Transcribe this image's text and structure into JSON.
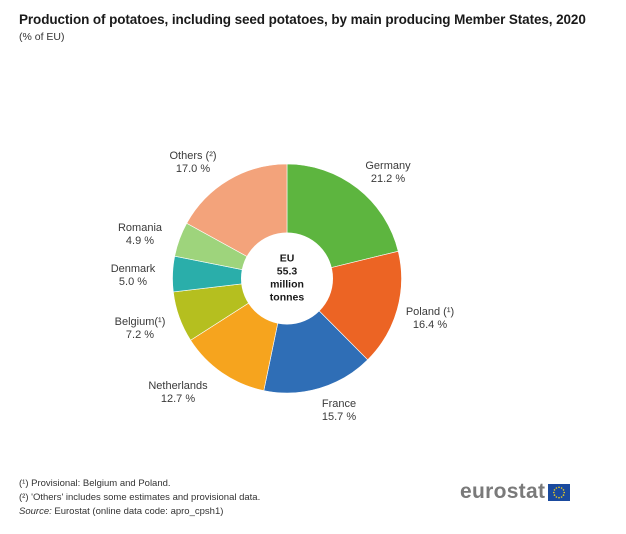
{
  "chart_data": {
    "type": "pie",
    "variant": "donut",
    "title": "Production of potatoes, including seed potatoes, by main producing Member States, 2020",
    "subtitle": "(% of EU)",
    "start": "12 o'clock, clockwise",
    "center_label": [
      "EU",
      "55.3",
      "million",
      "tonnes"
    ],
    "total": {
      "value": 55.3,
      "unit": "million tonnes"
    },
    "slices": [
      {
        "name": "Germany",
        "label": "Germany",
        "value": 21.2,
        "value_label": "21.2 %",
        "color": "#5db53f"
      },
      {
        "name": "Poland",
        "label": "Poland (¹)",
        "value": 16.4,
        "value_label": "16.4 %",
        "color": "#ec6424"
      },
      {
        "name": "France",
        "label": "France",
        "value": 15.7,
        "value_label": "15.7 %",
        "color": "#2f6eb6"
      },
      {
        "name": "Netherlands",
        "label": "Netherlands",
        "value": 12.7,
        "value_label": "12.7 %",
        "color": "#f6a41e"
      },
      {
        "name": "Belgium",
        "label": "Belgium(¹)",
        "value": 7.2,
        "value_label": "7.2 %",
        "color": "#b5bf1f"
      },
      {
        "name": "Denmark",
        "label": "Denmark",
        "value": 5.0,
        "value_label": "5.0 %",
        "color": "#2aaeaa"
      },
      {
        "name": "Romania",
        "label": "Romania",
        "value": 4.9,
        "value_label": "4.9 %",
        "color": "#9ed47c"
      },
      {
        "name": "Others",
        "label": "Others (²)",
        "value": 17.0,
        "value_label": "17.0 %",
        "color": "#f3a37b"
      }
    ]
  },
  "footnotes": {
    "note1": "(¹) Provisional: Belgium and Poland.",
    "note2": "(²) 'Others' includes some estimates and provisional data.",
    "source_prefix": "Source:",
    "source_text": " Eurostat (online data code: apro_cpsh1)"
  },
  "logo": {
    "text": "eurostat",
    "flag_color": "#1a4a9e",
    "star_color": "#f5d21c"
  }
}
